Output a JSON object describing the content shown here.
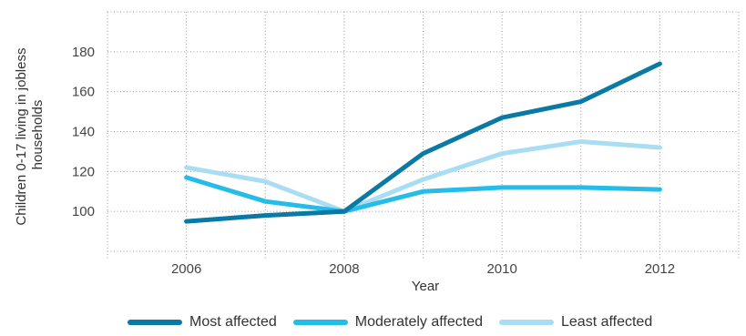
{
  "chart_data": {
    "type": "line",
    "title": "",
    "xlabel": "Year",
    "ylabel_lines": [
      "Children 0-17 living in jobless",
      "households"
    ],
    "x": [
      2006,
      2007,
      2008,
      2009,
      2010,
      2011,
      2012
    ],
    "xticks": [
      2006,
      2008,
      2010,
      2012
    ],
    "xlim": [
      2005,
      2013
    ],
    "yticks": [
      100,
      120,
      140,
      160,
      180
    ],
    "ylim": [
      80,
      200
    ],
    "grid": "dotted",
    "legend_position": "bottom",
    "series": [
      {
        "name": "Most affected",
        "color": "#0A7AA4",
        "values": [
          95,
          98,
          100,
          129,
          147,
          155,
          174
        ]
      },
      {
        "name": "Moderately affected",
        "color": "#25BCE8",
        "values": [
          117,
          105,
          100,
          110,
          112,
          112,
          111
        ]
      },
      {
        "name": "Least affected",
        "color": "#A9DDF3",
        "values": [
          122,
          115,
          100,
          116,
          129,
          135,
          132
        ]
      }
    ]
  }
}
